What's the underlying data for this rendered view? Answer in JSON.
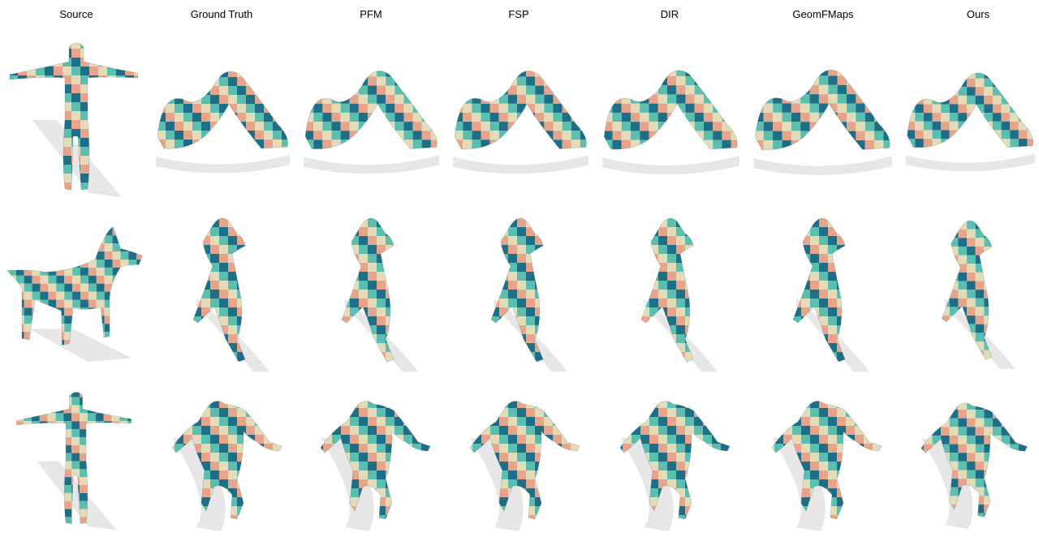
{
  "columns": [
    "Source",
    "Ground Truth",
    "PFM",
    "FSP",
    "DIR",
    "GeomFMaps",
    "Ours"
  ],
  "rows": [
    {
      "name": "human-yoga",
      "cells": [
        "human-tpose-source",
        "yoga-pose",
        "yoga-pose",
        "yoga-pose",
        "yoga-pose",
        "yoga-pose",
        "yoga-pose"
      ]
    },
    {
      "name": "dog",
      "cells": [
        "dog-standing-source",
        "dog-sitting",
        "dog-sitting",
        "dog-sitting",
        "dog-sitting",
        "dog-sitting",
        "dog-sitting"
      ]
    },
    {
      "name": "human-dance",
      "cells": [
        "human-tpose-source",
        "dance-pose",
        "dance-pose",
        "dance-pose",
        "dance-pose",
        "dance-pose",
        "dance-pose"
      ]
    }
  ],
  "colors": {
    "teal": "#5bbfb0",
    "dark_teal": "#1e6e88",
    "salmon": "#e8a48a",
    "cream": "#e4dcb8",
    "shadow": "#d0d0d0"
  }
}
